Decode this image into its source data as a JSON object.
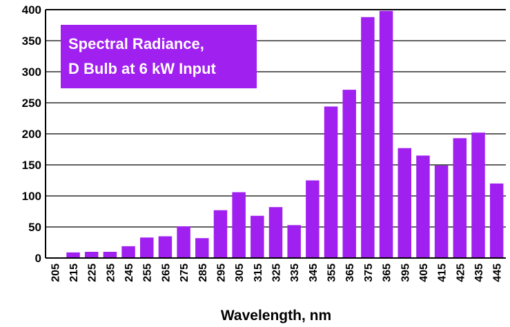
{
  "chart_data": {
    "type": "bar",
    "title_lines": [
      "Spectral Radiance,",
      "D Bulb at 6 kW Input"
    ],
    "xlabel": "Wavelength, nm",
    "ylabel": "",
    "ylim": [
      0,
      400
    ],
    "yticks": [
      0,
      50,
      100,
      150,
      200,
      250,
      300,
      350,
      400
    ],
    "grid": true,
    "legend": "none",
    "bar_color": "#a020f0",
    "categories": [
      "205",
      "215",
      "225",
      "235",
      "245",
      "255",
      "265",
      "275",
      "285",
      "295",
      "305",
      "315",
      "325",
      "335",
      "345",
      "355",
      "365",
      "375",
      "365",
      "395",
      "405",
      "415",
      "425",
      "435",
      "445"
    ],
    "values": [
      1,
      9,
      10,
      10,
      19,
      33,
      35,
      51,
      32,
      77,
      106,
      68,
      82,
      53,
      125,
      244,
      271,
      388,
      398,
      177,
      165,
      149,
      193,
      202,
      120
    ]
  }
}
